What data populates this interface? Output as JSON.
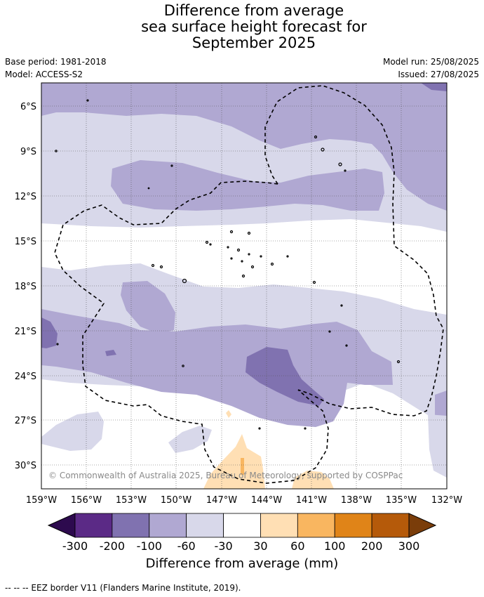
{
  "title": {
    "line1": "Difference from average",
    "line2": "sea surface height forecast for",
    "line3": "September 2025"
  },
  "meta": {
    "base_period": "Base period: 1981-2018",
    "model": "Model: ACCESS-S2",
    "model_run": "Model run: 25/08/2025",
    "issued": "Issued: 27/08/2025"
  },
  "map": {
    "lat_ticks": [
      "6°S",
      "9°S",
      "12°S",
      "15°S",
      "18°S",
      "21°S",
      "24°S",
      "27°S",
      "30°S"
    ],
    "lon_ticks": [
      "159°W",
      "156°W",
      "153°W",
      "150°W",
      "147°W",
      "144°W",
      "141°W",
      "138°W",
      "135°W",
      "132°W"
    ],
    "extent": {
      "lon_west": "159°W",
      "lon_east": "132°W",
      "lat_north": "~5°S",
      "lat_south": "~31.5°S"
    },
    "copyright": "© Commonwealth of Australia 2025, Bureau of Meteorology, supported by COSPPac",
    "grid": true,
    "overlay": "EEZ border (dashed)"
  },
  "colorbar": {
    "ticks": [
      "-300",
      "-200",
      "-100",
      "-60",
      "-30",
      "30",
      "60",
      "100",
      "200",
      "300"
    ],
    "colors": [
      "#2d0a4e",
      "#5b2a86",
      "#8072b0",
      "#b0a8d2",
      "#d8d8ea",
      "#ffffff",
      "#ffdfb4",
      "#f9b660",
      "#e08418",
      "#b55a0a",
      "#7a3d0a"
    ],
    "title": "Difference from average (mm)"
  },
  "footnote": "--  --  -- EEZ border V11 (Flanders Marine Institute, 2019)."
}
